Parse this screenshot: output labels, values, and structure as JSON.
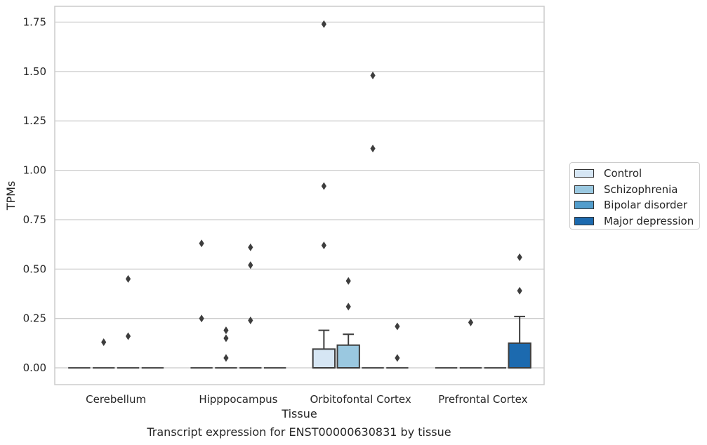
{
  "chart_data": {
    "type": "box",
    "title": "",
    "caption": "Transcript expression for ENST00000630831 by tissue",
    "xlabel": "Tissue",
    "ylabel": "TPMs",
    "ylim": [
      -0.085,
      1.83
    ],
    "yticks": [
      "0.00",
      "0.25",
      "0.50",
      "0.75",
      "1.00",
      "1.25",
      "1.50",
      "1.75"
    ],
    "ytick_values": [
      0,
      0.25,
      0.5,
      0.75,
      1.0,
      1.25,
      1.5,
      1.75
    ],
    "grid": "horizontal",
    "legend_position": "right",
    "categories": [
      "Cerebellum",
      "Hipppocampus",
      "Orbitofontal Cortex",
      "Prefrontal Cortex"
    ],
    "series": [
      {
        "name": "Control",
        "color": "#d6e6f4",
        "boxes": [
          {
            "q1": 0,
            "median": 0,
            "q3": 0,
            "whisker_low": 0,
            "whisker_high": 0,
            "outliers": []
          },
          {
            "q1": 0,
            "median": 0,
            "q3": 0,
            "whisker_low": 0,
            "whisker_high": 0,
            "outliers": [
              0.63,
              0.25
            ]
          },
          {
            "q1": 0,
            "median": 0,
            "q3": 0.095,
            "whisker_low": 0,
            "whisker_high": 0.19,
            "outliers": [
              1.74,
              0.92,
              0.62
            ]
          },
          {
            "q1": 0,
            "median": 0,
            "q3": 0,
            "whisker_low": 0,
            "whisker_high": 0,
            "outliers": []
          }
        ]
      },
      {
        "name": "Schizophrenia",
        "color": "#9ac8e0",
        "boxes": [
          {
            "q1": 0,
            "median": 0,
            "q3": 0,
            "whisker_low": 0,
            "whisker_high": 0,
            "outliers": [
              0.13
            ]
          },
          {
            "q1": 0,
            "median": 0,
            "q3": 0,
            "whisker_low": 0,
            "whisker_high": 0,
            "outliers": [
              0.19,
              0.15,
              0.05
            ]
          },
          {
            "q1": 0,
            "median": 0,
            "q3": 0.115,
            "whisker_low": 0,
            "whisker_high": 0.17,
            "outliers": [
              0.44,
              0.31
            ]
          },
          {
            "q1": 0,
            "median": 0,
            "q3": 0,
            "whisker_low": 0,
            "whisker_high": 0,
            "outliers": [
              0.23
            ]
          }
        ]
      },
      {
        "name": "Bipolar disorder",
        "color": "#529dcc",
        "boxes": [
          {
            "q1": 0,
            "median": 0,
            "q3": 0,
            "whisker_low": 0,
            "whisker_high": 0,
            "outliers": [
              0.45,
              0.16
            ]
          },
          {
            "q1": 0,
            "median": 0,
            "q3": 0,
            "whisker_low": 0,
            "whisker_high": 0,
            "outliers": [
              0.61,
              0.52,
              0.24
            ]
          },
          {
            "q1": 0,
            "median": 0,
            "q3": 0,
            "whisker_low": 0,
            "whisker_high": 0,
            "outliers": [
              1.48,
              1.11
            ]
          },
          {
            "q1": 0,
            "median": 0,
            "q3": 0,
            "whisker_low": 0,
            "whisker_high": 0,
            "outliers": []
          }
        ]
      },
      {
        "name": "Major depression",
        "color": "#1c6aaf",
        "boxes": [
          {
            "q1": 0,
            "median": 0,
            "q3": 0,
            "whisker_low": 0,
            "whisker_high": 0,
            "outliers": []
          },
          {
            "q1": 0,
            "median": 0,
            "q3": 0,
            "whisker_low": 0,
            "whisker_high": 0,
            "outliers": []
          },
          {
            "q1": 0,
            "median": 0,
            "q3": 0,
            "whisker_low": 0,
            "whisker_high": 0,
            "outliers": [
              0.21,
              0.05
            ]
          },
          {
            "q1": 0,
            "median": 0,
            "q3": 0.125,
            "whisker_low": 0,
            "whisker_high": 0.26,
            "outliers": [
              0.56,
              0.39
            ]
          }
        ]
      }
    ]
  }
}
